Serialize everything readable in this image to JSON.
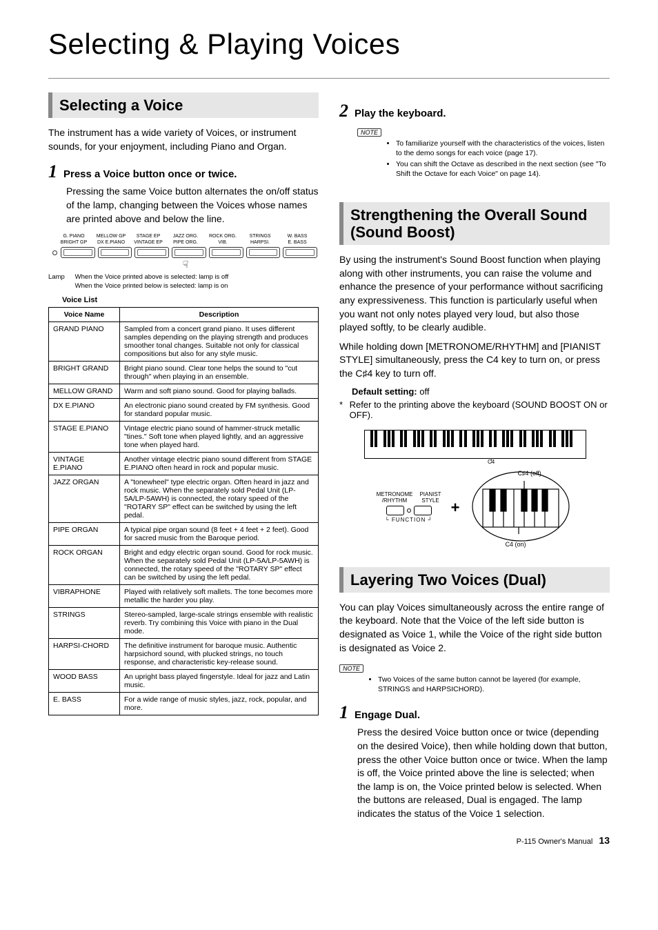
{
  "page": {
    "title": "Selecting & Playing Voices",
    "footer_text": "P-115  Owner's Manual",
    "footer_page": "13"
  },
  "left": {
    "section1": "Selecting a Voice",
    "intro": "The instrument has a wide variety of Voices, or instrument sounds, for your enjoyment, including Piano and Organ.",
    "step1_num": "1",
    "step1_title": "Press a Voice button once or twice.",
    "step1_body": "Pressing the same Voice button alternates the on/off status of the lamp, changing between the Voices whose names are printed above and below the line.",
    "panel_top": [
      "G. PIANO",
      "MELLOW GP",
      "STAGE EP",
      "JAZZ ORG.",
      "ROCK ORG.",
      "STRINGS",
      "W. BASS"
    ],
    "panel_bot": [
      "BRIGHT GP",
      "DX E.PIANO",
      "VINTAGE EP",
      "PIPE ORG.",
      "VIB.",
      "HARPSI.",
      "E. BASS"
    ],
    "lamp_label": "Lamp",
    "lamp_caption1": "When the Voice printed above is selected: lamp is off",
    "lamp_caption2": "When the Voice printed below is selected: lamp is on",
    "voice_list_title": "Voice List",
    "th1": "Voice Name",
    "th2": "Description",
    "voices": [
      {
        "name": "GRAND PIANO",
        "desc": "Sampled from a concert grand piano. It uses different samples depending on the playing strength and produces smoother tonal changes. Suitable not only for classical compositions but also for any style music."
      },
      {
        "name": "BRIGHT GRAND",
        "desc": "Bright piano sound. Clear tone helps the sound to \"cut through\" when playing in an ensemble."
      },
      {
        "name": "MELLOW GRAND",
        "desc": "Warm and soft piano sound. Good for playing ballads."
      },
      {
        "name": "DX E.PIANO",
        "desc": "An electronic piano sound created by FM synthesis. Good for standard popular music."
      },
      {
        "name": "STAGE E.PIANO",
        "desc": "Vintage electric piano sound of hammer-struck metallic \"tines.\" Soft tone when played lightly, and an aggressive tone when played hard."
      },
      {
        "name": "VINTAGE E.PIANO",
        "desc": "Another vintage electric piano sound different from STAGE E.PIANO often heard in rock and popular music."
      },
      {
        "name": "JAZZ ORGAN",
        "desc": "A \"tonewheel\" type electric organ. Often heard in jazz and rock music. When the separately sold Pedal Unit (LP-5A/LP-5AWH) is connected, the rotary speed of the \"ROTARY SP\" effect can be switched by using the left pedal."
      },
      {
        "name": "PIPE ORGAN",
        "desc": "A typical pipe organ sound (8 feet + 4 feet + 2 feet). Good for sacred music from the Baroque period."
      },
      {
        "name": "ROCK ORGAN",
        "desc": "Bright and edgy electric organ sound. Good for rock music. When the separately sold Pedal Unit (LP-5A/LP-5AWH) is connected, the rotary speed of the \"ROTARY SP\" effect can be switched by using the left pedal."
      },
      {
        "name": "VIBRAPHONE",
        "desc": "Played with relatively soft mallets. The tone becomes more metallic the harder you play."
      },
      {
        "name": "STRINGS",
        "desc": "Stereo-sampled, large-scale strings ensemble with realistic reverb. Try combining this Voice with piano in the Dual mode."
      },
      {
        "name": "HARPSI-CHORD",
        "desc": "The definitive instrument for baroque music. Authentic harpsichord sound, with plucked strings, no touch response, and characteristic key-release sound."
      },
      {
        "name": "WOOD BASS",
        "desc": "An upright bass played fingerstyle. Ideal for jazz and Latin music."
      },
      {
        "name": "E. BASS",
        "desc": "For a wide range of music styles, jazz, rock, popular, and more."
      }
    ]
  },
  "right": {
    "step2_num": "2",
    "step2_title": "Play the keyboard.",
    "note_tag": "NOTE",
    "notes1": [
      "To familiarize yourself with the characteristics of the voices, listen to the demo songs for each voice (page 17).",
      "You can shift the Octave as described in the next section (see \"To Shift the Octave for each Voice\" on page 14)."
    ],
    "section2": "Strengthening the Overall Sound (Sound Boost)",
    "sb_body1": "By using the instrument's Sound Boost function when playing along with other instruments, you can raise the volume and enhance the presence of your performance without sacrificing any expressiveness. This function is particularly useful when you want not only notes played very loud, but also those played softly, to be clearly audible.",
    "sb_body2": "While holding down [METRONOME/RHYTHM] and [PIANIST STYLE] simultaneously, press the C4 key to turn on, or press the C♯4 key to turn off.",
    "default_label": "Default setting:",
    "default_value": "off",
    "asterisk": "Refer to the printing above the keyboard (SOUND BOOST ON or OFF).",
    "kb_c4": "C4",
    "kb_cs4_off": "C♯4 (off)",
    "kb_c4_on": "C4 (on)",
    "func_l1": "METRONOME",
    "func_l2": "/RHYTHM",
    "func_r1": "PIANIST",
    "func_r2": "STYLE",
    "func_bracket": "FUNCTION",
    "section3": "Layering Two Voices (Dual)",
    "dual_body": "You can play Voices simultaneously across the entire range of the keyboard. Note that the Voice of the left side button is designated as Voice 1, while the Voice of the right side button is designated as Voice 2.",
    "notes2": [
      "Two Voices of the same button cannot be layered (for example, STRINGS and HARPSICHORD)."
    ],
    "step3_num": "1",
    "step3_title": "Engage Dual.",
    "step3_body": "Press the desired Voice button once or twice (depending on the desired Voice), then while holding down that button, press the other Voice button once or twice. When the lamp is off, the Voice printed above the line is selected; when the lamp is on, the Voice printed below is selected. When the buttons are released, Dual is engaged. The lamp indicates the status of the Voice 1 selection."
  }
}
